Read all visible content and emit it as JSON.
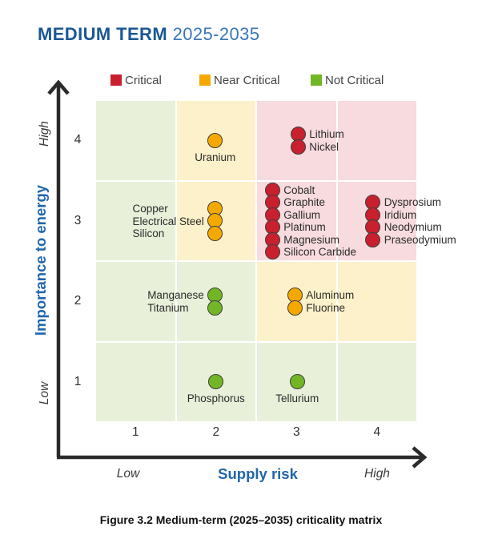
{
  "title": {
    "bold": "MEDIUM TERM",
    "years": "2025-2035"
  },
  "legend": [
    {
      "label": "Critical",
      "key": "critical"
    },
    {
      "label": "Near Critical",
      "key": "near_critical"
    },
    {
      "label": "Not Critical",
      "key": "not_critical"
    }
  ],
  "colors": {
    "critical": "#c8202f",
    "near_critical": "#f5a800",
    "not_critical": "#72b626",
    "cell_green": "#e8f0da",
    "cell_yellow": "#fcf1ca",
    "cell_pink": "#f7dbde",
    "axis_blue": "#2166ad",
    "title_dark_blue": "#1b5796",
    "title_light_blue": "#3b76b5",
    "axis_line": "#2b2b2b"
  },
  "axes": {
    "x": {
      "label": "Supply risk",
      "low": "Low",
      "high": "High"
    },
    "y": {
      "label": "Importance to energy",
      "low": "Low",
      "high": "High"
    }
  },
  "caption": "Figure 3.2 Medium-term (2025–2035) criticality matrix",
  "chart_data": {
    "type": "scatter",
    "title": "MEDIUM TERM 2025-2035",
    "xlabel": "Supply risk",
    "ylabel": "Importance to energy",
    "xlim": [
      0.5,
      4.5
    ],
    "ylim": [
      0.5,
      4.5
    ],
    "x_ticks": [
      "1",
      "2",
      "3",
      "4"
    ],
    "y_ticks": [
      "1",
      "2",
      "3",
      "4"
    ],
    "grid": true,
    "legend_position": "top",
    "cell_colors": [
      [
        "green",
        "yellow",
        "pink",
        "pink"
      ],
      [
        "green",
        "yellow",
        "pink",
        "pink"
      ],
      [
        "green",
        "green",
        "yellow",
        "yellow"
      ],
      [
        "green",
        "green",
        "green",
        "green"
      ]
    ],
    "groups": [
      {
        "x": 2,
        "y": 4,
        "status": "near_critical",
        "minerals": [
          "Uranium"
        ],
        "label_side": "below",
        "dx": -1
      },
      {
        "x": 3,
        "y": 4,
        "status": "critical",
        "minerals": [
          "Lithium",
          "Nickel"
        ],
        "label_side": "right",
        "dx": 2
      },
      {
        "x": 2,
        "y": 3,
        "status": "near_critical",
        "minerals": [
          "Copper",
          "Electrical Steel",
          "Silicon"
        ],
        "label_side": "left",
        "dx": -1
      },
      {
        "x": 3,
        "y": 3,
        "status": "critical",
        "minerals": [
          "Cobalt",
          "Graphite",
          "Gallium",
          "Platinum",
          "Magnesium",
          "Silicon Carbide"
        ],
        "label_side": "right",
        "dx": -30
      },
      {
        "x": 4,
        "y": 3,
        "status": "critical",
        "minerals": [
          "Dysprosium",
          "Iridium",
          "Neodymium",
          "Praseodymium"
        ],
        "label_side": "right",
        "dx": -5
      },
      {
        "x": 2,
        "y": 2,
        "status": "not_critical",
        "minerals": [
          "Manganese",
          "Titanium"
        ],
        "label_side": "left",
        "dx": -1
      },
      {
        "x": 3,
        "y": 2,
        "status": "near_critical",
        "minerals": [
          "Aluminum",
          "Fluorine"
        ],
        "label_side": "right",
        "dx": -2
      },
      {
        "x": 2,
        "y": 1,
        "status": "not_critical",
        "minerals": [
          "Phosphorus"
        ],
        "label_side": "below",
        "dx": 0
      },
      {
        "x": 3,
        "y": 1,
        "status": "not_critical",
        "minerals": [
          "Tellurium"
        ],
        "label_side": "below",
        "dx": 1
      }
    ]
  }
}
